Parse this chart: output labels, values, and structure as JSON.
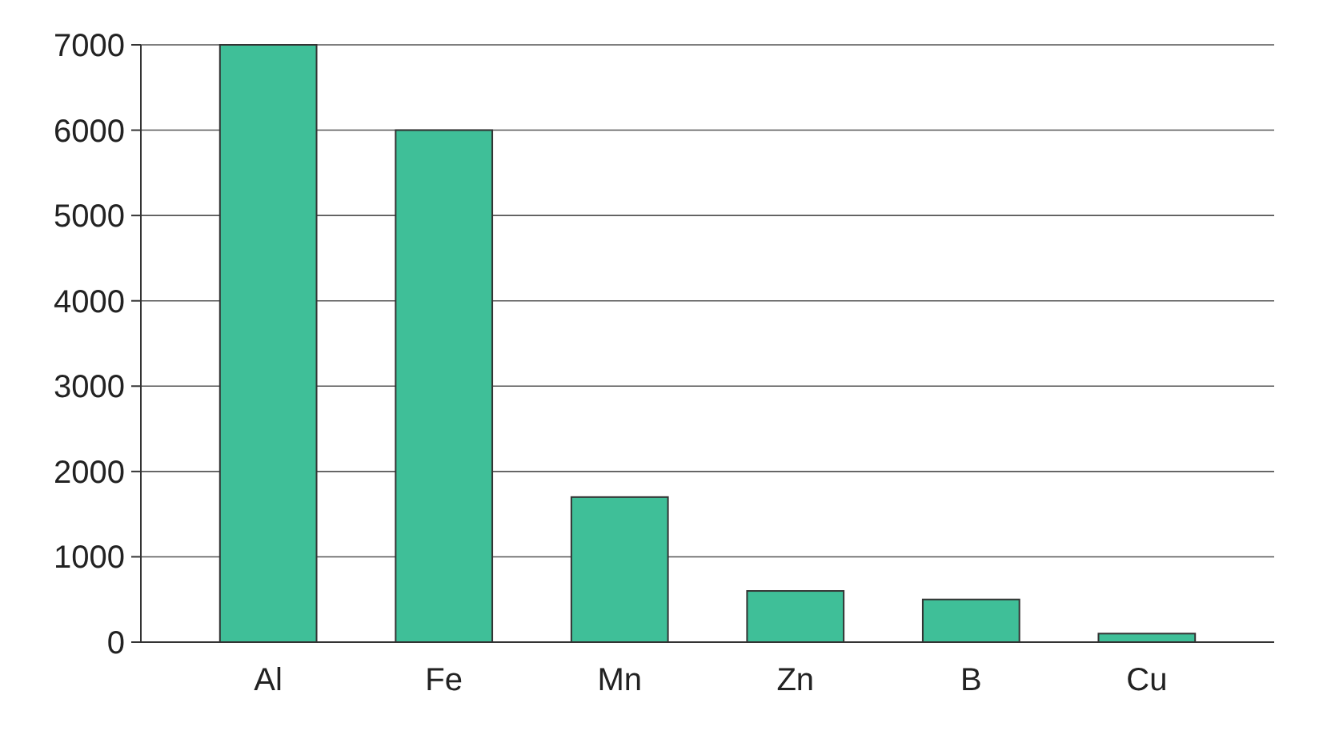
{
  "chart_data": {
    "type": "bar",
    "categories": [
      "Al",
      "Fe",
      "Mn",
      "Zn",
      "B",
      "Cu"
    ],
    "values": [
      7000,
      6000,
      1700,
      600,
      500,
      100
    ],
    "color": "#3fbf98",
    "ylim": [
      0,
      7000
    ],
    "yticks": [
      0,
      1000,
      2000,
      3000,
      4000,
      5000,
      6000,
      7000
    ],
    "grid": "y"
  }
}
